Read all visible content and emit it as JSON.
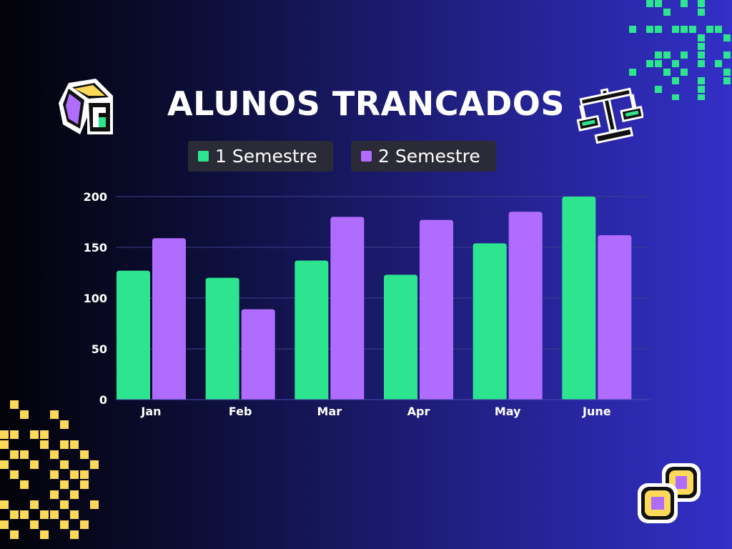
{
  "title": "ALUNOS TRANCADOS",
  "colors": {
    "series_1": "#2ee58f",
    "series_2": "#b06bff",
    "accent_yellow": "#fdd95a",
    "grid": "#3e3f8a"
  },
  "icons": [
    "pie-chart-pixel-icon",
    "scale-balance-pixel-icon",
    "coins-pixel-icon",
    "pixel-dot-pattern",
    "pixel-dot-pattern"
  ],
  "chart_data": {
    "type": "bar",
    "categories": [
      "Jan",
      "Feb",
      "Mar",
      "Apr",
      "May",
      "June"
    ],
    "series": [
      {
        "name": "1 Semestre",
        "values": [
          127,
          120,
          137,
          123,
          154,
          200
        ]
      },
      {
        "name": "2 Semestre",
        "values": [
          159,
          89,
          180,
          177,
          185,
          162
        ]
      }
    ],
    "yticks": [
      "200",
      "150",
      "100",
      "50",
      "0"
    ],
    "ylim": [
      0,
      200
    ],
    "grid": true,
    "legend": "top-center"
  }
}
